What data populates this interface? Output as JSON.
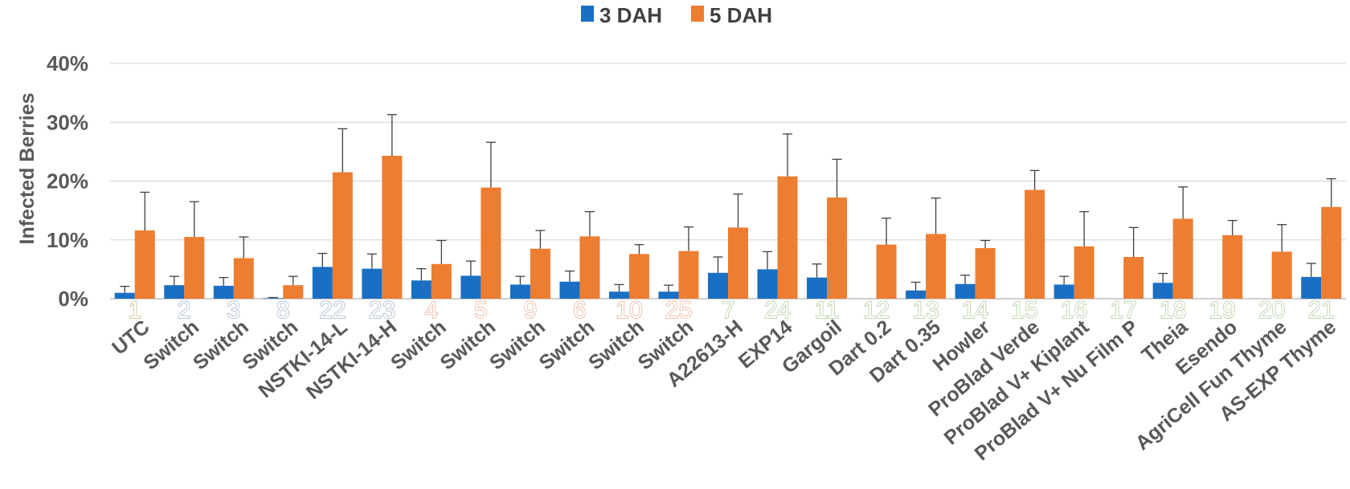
{
  "chart_data": {
    "type": "bar",
    "title": "",
    "xlabel": "",
    "ylabel": "Infected Berries",
    "ylim": [
      0,
      40
    ],
    "yticks": [
      "0%",
      "10%",
      "20%",
      "30%",
      "40%"
    ],
    "grid": true,
    "legend_position": "top-center",
    "categories": [
      "UTC",
      "Switch",
      "Switch",
      "Switch",
      "NSTKI-14-L",
      "NSTKI-14-H",
      "Switch",
      "Switch",
      "Switch",
      "Switch",
      "Switch",
      "Switch",
      "A22613-H",
      "EXP14",
      "Gargoil",
      "Dart 0.2",
      "Dart 0.35",
      "Howler",
      "ProBlad Verde",
      "ProBlad V+ Kiplant",
      "ProBlad V+ Nu Film P",
      "Theia",
      "Esendo",
      "AgriCell Fun Thyme",
      "AS-EXP Thyme"
    ],
    "treatment_numbers": [
      "1",
      "2",
      "3",
      "8",
      "22",
      "23",
      "4",
      "5",
      "9",
      "6",
      "10",
      "25",
      "7",
      "24",
      "11",
      "12",
      "13",
      "14",
      "15",
      "16",
      "17",
      "18",
      "19",
      "20",
      "21"
    ],
    "number_colors": [
      "#c9b47a",
      "#9eadc8",
      "#9eadc8",
      "#9eadc8",
      "#9eadc8",
      "#9eadc8",
      "#e8a98e",
      "#e8a98e",
      "#e8a98e",
      "#e8a98e",
      "#e8a98e",
      "#e8a98e",
      "#a9c795",
      "#a9c795",
      "#a9c795",
      "#a9c795",
      "#a9c795",
      "#a9c795",
      "#a9c795",
      "#a9c795",
      "#a9c795",
      "#a9c795",
      "#a9c795",
      "#a9c795",
      "#a9c795"
    ],
    "series": [
      {
        "name": "3 DAH",
        "color": "#1a6fc4",
        "values": [
          1.0,
          2.3,
          2.2,
          0.1,
          5.4,
          5.1,
          3.1,
          3.9,
          2.4,
          2.9,
          1.2,
          1.2,
          4.4,
          5.0,
          3.6,
          0.0,
          1.4,
          2.5,
          0.0,
          2.4,
          0.0,
          2.7,
          0.0,
          0.0,
          3.7
        ],
        "errors": [
          1.1,
          1.5,
          1.4,
          0.1,
          2.3,
          2.5,
          2.0,
          2.5,
          1.4,
          1.8,
          1.2,
          1.1,
          2.7,
          3.0,
          2.3,
          0.0,
          1.4,
          1.5,
          0.0,
          1.4,
          0.0,
          1.6,
          0.0,
          0.0,
          2.3
        ]
      },
      {
        "name": "5 DAH",
        "color": "#ed7d31",
        "values": [
          11.6,
          10.5,
          6.9,
          2.3,
          21.5,
          24.3,
          5.9,
          18.9,
          8.5,
          10.6,
          7.6,
          8.1,
          12.1,
          20.8,
          17.2,
          9.2,
          11.0,
          8.6,
          18.5,
          8.9,
          7.1,
          13.6,
          10.8,
          8.0,
          15.6
        ],
        "errors": [
          6.5,
          6.0,
          3.6,
          1.5,
          7.4,
          7.0,
          4.0,
          7.7,
          3.1,
          4.2,
          1.6,
          4.1,
          5.7,
          7.2,
          6.5,
          4.5,
          6.1,
          1.3,
          3.3,
          5.9,
          5.0,
          5.4,
          2.5,
          4.6,
          4.8
        ]
      }
    ]
  }
}
